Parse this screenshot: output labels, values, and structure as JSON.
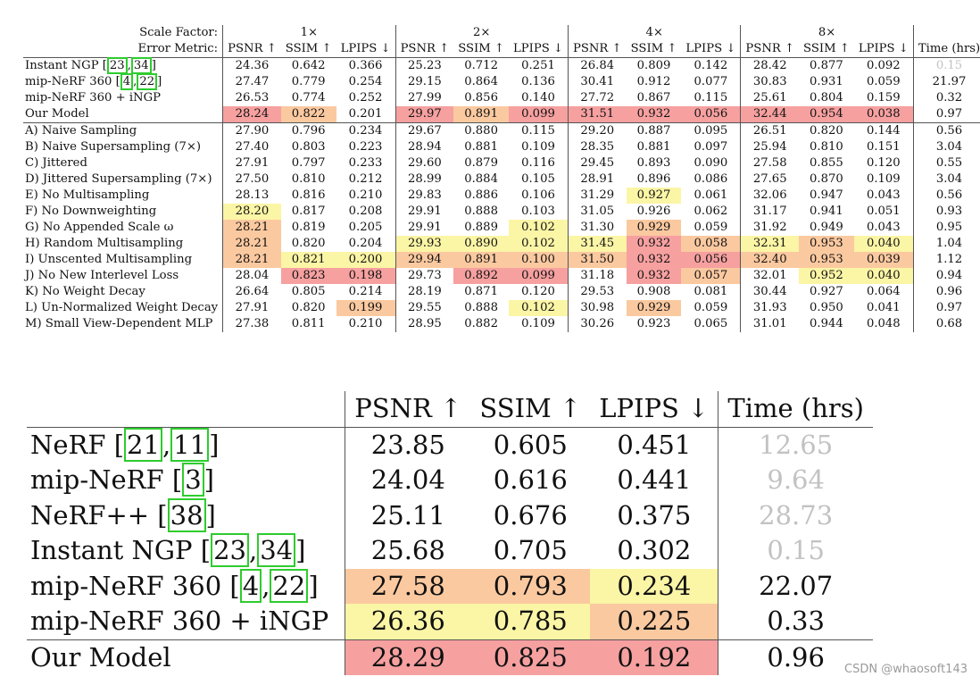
{
  "table1": {
    "header_row1": [
      "Scale Factor:",
      "1×",
      "2×",
      "4×",
      "8×"
    ],
    "header_row2": [
      "Error Metric:",
      "PSNR ↑",
      "SSIM ↑",
      "LPIPS ↓",
      "PSNR ↑",
      "SSIM ↑",
      "LPIPS ↓",
      "PSNR ↑",
      "SSIM ↑",
      "LPIPS ↓",
      "PSNR ↑",
      "SSIM ↑",
      "LPIPS ↓",
      "Time (hrs)"
    ],
    "rows": [
      {
        "label": "Instant NGP",
        "refs": [
          "23",
          "34"
        ],
        "values": [
          "24.36",
          "0.642",
          "0.366",
          "25.23",
          "0.712",
          "0.251",
          "26.84",
          "0.809",
          "0.142",
          "28.42",
          "0.877",
          "0.092",
          "0.15"
        ],
        "colors": [
          "",
          "",
          "",
          "",
          "",
          "",
          "",
          "",
          "",
          "",
          "",
          "",
          ""
        ],
        "grey_time": true
      },
      {
        "label": "mip-NeRF 360",
        "refs": [
          "4",
          "22"
        ],
        "values": [
          "27.47",
          "0.779",
          "0.254",
          "29.15",
          "0.864",
          "0.136",
          "30.41",
          "0.912",
          "0.077",
          "30.83",
          "0.931",
          "0.059",
          "21.97"
        ],
        "colors": [
          "",
          "",
          "",
          "",
          "",
          "",
          "",
          "",
          "",
          "",
          "",
          "",
          ""
        ]
      },
      {
        "label": "mip-NeRF 360 + iNGP",
        "refs": [],
        "values": [
          "26.53",
          "0.774",
          "0.252",
          "27.99",
          "0.856",
          "0.140",
          "27.72",
          "0.867",
          "0.115",
          "25.61",
          "0.804",
          "0.159",
          "0.32"
        ],
        "colors": [
          "",
          "",
          "",
          "",
          "",
          "",
          "",
          "",
          "",
          "",
          "",
          "",
          ""
        ]
      },
      {
        "label": "Our Model",
        "refs": [],
        "values": [
          "28.24",
          "0.822",
          "0.201",
          "29.97",
          "0.891",
          "0.099",
          "31.51",
          "0.932",
          "0.056",
          "32.44",
          "0.954",
          "0.038",
          "0.97"
        ],
        "colors": [
          "c1",
          "c2",
          "",
          "c1",
          "c2",
          "c1",
          "c1",
          "c1",
          "c1",
          "c1",
          "c1",
          "c1",
          ""
        ]
      },
      {
        "label": "A) Naive Sampling",
        "refs": [],
        "values": [
          "27.90",
          "0.796",
          "0.234",
          "29.67",
          "0.880",
          "0.115",
          "29.20",
          "0.887",
          "0.095",
          "26.51",
          "0.820",
          "0.144",
          "0.56"
        ],
        "colors": [
          "",
          "",
          "",
          "",
          "",
          "",
          "",
          "",
          "",
          "",
          "",
          "",
          ""
        ]
      },
      {
        "label": "B) Naive Supersampling (7×)",
        "refs": [],
        "values": [
          "27.40",
          "0.803",
          "0.223",
          "28.94",
          "0.881",
          "0.109",
          "28.35",
          "0.881",
          "0.097",
          "25.94",
          "0.810",
          "0.151",
          "3.04"
        ],
        "colors": [
          "",
          "",
          "",
          "",
          "",
          "",
          "",
          "",
          "",
          "",
          "",
          "",
          ""
        ]
      },
      {
        "label": "C) Jittered",
        "refs": [],
        "values": [
          "27.91",
          "0.797",
          "0.233",
          "29.60",
          "0.879",
          "0.116",
          "29.45",
          "0.893",
          "0.090",
          "27.58",
          "0.855",
          "0.120",
          "0.55"
        ],
        "colors": [
          "",
          "",
          "",
          "",
          "",
          "",
          "",
          "",
          "",
          "",
          "",
          "",
          ""
        ]
      },
      {
        "label": "D) Jittered Supersampling (7×)",
        "refs": [],
        "values": [
          "27.50",
          "0.810",
          "0.212",
          "28.99",
          "0.884",
          "0.105",
          "28.91",
          "0.896",
          "0.086",
          "27.65",
          "0.870",
          "0.109",
          "3.04"
        ],
        "colors": [
          "",
          "",
          "",
          "",
          "",
          "",
          "",
          "",
          "",
          "",
          "",
          "",
          ""
        ]
      },
      {
        "label": "E) No Multisampling",
        "refs": [],
        "values": [
          "28.13",
          "0.816",
          "0.210",
          "29.83",
          "0.886",
          "0.106",
          "31.29",
          "0.927",
          "0.061",
          "32.06",
          "0.947",
          "0.043",
          "0.56"
        ],
        "colors": [
          "",
          "",
          "",
          "",
          "",
          "",
          "",
          "c3",
          "",
          "",
          "",
          "",
          ""
        ]
      },
      {
        "label": "F) No Downweighting",
        "refs": [],
        "values": [
          "28.20",
          "0.817",
          "0.208",
          "29.91",
          "0.888",
          "0.103",
          "31.05",
          "0.926",
          "0.062",
          "31.17",
          "0.941",
          "0.051",
          "0.93"
        ],
        "colors": [
          "c3",
          "",
          "",
          "",
          "",
          "",
          "",
          "",
          "",
          "",
          "",
          "",
          ""
        ]
      },
      {
        "label": "G) No Appended Scale ω",
        "refs": [],
        "values": [
          "28.21",
          "0.819",
          "0.205",
          "29.91",
          "0.889",
          "0.102",
          "31.30",
          "0.929",
          "0.059",
          "31.92",
          "0.949",
          "0.043",
          "0.95"
        ],
        "colors": [
          "c2",
          "",
          "",
          "",
          "",
          "c3",
          "",
          "c2",
          "",
          "",
          "",
          "",
          ""
        ]
      },
      {
        "label": "H) Random Multisampling",
        "refs": [],
        "values": [
          "28.21",
          "0.820",
          "0.204",
          "29.93",
          "0.890",
          "0.102",
          "31.45",
          "0.932",
          "0.058",
          "32.31",
          "0.953",
          "0.040",
          "1.04"
        ],
        "colors": [
          "c2",
          "",
          "",
          "c3",
          "c3",
          "c3",
          "c3",
          "c1",
          "c2",
          "c3",
          "c2",
          "c3",
          ""
        ]
      },
      {
        "label": "I) Unscented Multisampling",
        "refs": [],
        "values": [
          "28.21",
          "0.821",
          "0.200",
          "29.94",
          "0.891",
          "0.100",
          "31.50",
          "0.932",
          "0.056",
          "32.40",
          "0.953",
          "0.039",
          "1.12"
        ],
        "colors": [
          "c2",
          "c3",
          "c3",
          "c2",
          "c2",
          "c2",
          "c2",
          "c1",
          "c1",
          "c2",
          "c2",
          "c2",
          ""
        ]
      },
      {
        "label": "J) No New Interlevel Loss",
        "refs": [],
        "values": [
          "28.04",
          "0.823",
          "0.198",
          "29.73",
          "0.892",
          "0.099",
          "31.18",
          "0.932",
          "0.057",
          "32.01",
          "0.952",
          "0.040",
          "0.94"
        ],
        "colors": [
          "",
          "c1",
          "c1",
          "",
          "c1",
          "c1",
          "",
          "c1",
          "c2",
          "",
          "c3",
          "c3",
          ""
        ]
      },
      {
        "label": "K) No Weight Decay",
        "refs": [],
        "values": [
          "26.64",
          "0.805",
          "0.214",
          "28.19",
          "0.871",
          "0.120",
          "29.53",
          "0.908",
          "0.081",
          "30.44",
          "0.927",
          "0.064",
          "0.96"
        ],
        "colors": [
          "",
          "",
          "",
          "",
          "",
          "",
          "",
          "",
          "",
          "",
          "",
          "",
          ""
        ]
      },
      {
        "label": "L) Un-Normalized Weight Decay",
        "refs": [],
        "values": [
          "27.91",
          "0.820",
          "0.199",
          "29.55",
          "0.888",
          "0.102",
          "30.98",
          "0.929",
          "0.059",
          "31.93",
          "0.950",
          "0.041",
          "0.97"
        ],
        "colors": [
          "",
          "",
          "c2",
          "",
          "",
          "c3",
          "",
          "c2",
          "",
          "",
          "",
          "",
          ""
        ]
      },
      {
        "label": "M) Small View-Dependent MLP",
        "refs": [],
        "values": [
          "27.38",
          "0.811",
          "0.210",
          "28.95",
          "0.882",
          "0.109",
          "30.26",
          "0.923",
          "0.065",
          "31.01",
          "0.944",
          "0.048",
          "0.68"
        ],
        "colors": [
          "",
          "",
          "",
          "",
          "",
          "",
          "",
          "",
          "",
          "",
          "",
          "",
          ""
        ]
      }
    ]
  },
  "table2": {
    "header": [
      "PSNR ↑",
      "SSIM ↑",
      "LPIPS ↓",
      "Time (hrs)"
    ],
    "rows": [
      {
        "label": "NeRF",
        "refs": [
          "21",
          "11"
        ],
        "values": [
          "23.85",
          "0.605",
          "0.451",
          "12.65"
        ],
        "colors": [
          "",
          "",
          "",
          ""
        ],
        "grey_time": true
      },
      {
        "label": "mip-NeRF",
        "refs": [
          "3"
        ],
        "values": [
          "24.04",
          "0.616",
          "0.441",
          "9.64"
        ],
        "colors": [
          "",
          "",
          "",
          ""
        ],
        "grey_time": true
      },
      {
        "label": "NeRF++",
        "refs": [
          "38"
        ],
        "values": [
          "25.11",
          "0.676",
          "0.375",
          "28.73"
        ],
        "colors": [
          "",
          "",
          "",
          ""
        ],
        "grey_time": true
      },
      {
        "label": "Instant NGP",
        "refs": [
          "23",
          "34"
        ],
        "values": [
          "25.68",
          "0.705",
          "0.302",
          "0.15"
        ],
        "colors": [
          "",
          "",
          "",
          ""
        ],
        "grey_time": true
      },
      {
        "label": "mip-NeRF 360",
        "refs": [
          "4",
          "22"
        ],
        "values": [
          "27.58",
          "0.793",
          "0.234",
          "22.07"
        ],
        "colors": [
          "c2",
          "c2",
          "c3",
          ""
        ]
      },
      {
        "label": "mip-NeRF 360 + iNGP",
        "refs": [],
        "values": [
          "26.36",
          "0.785",
          "0.225",
          "0.33"
        ],
        "colors": [
          "c3",
          "c3",
          "c2",
          ""
        ]
      },
      {
        "label": "Our Model",
        "refs": [],
        "values": [
          "28.29",
          "0.825",
          "0.192",
          "0.96"
        ],
        "colors": [
          "c1",
          "c1",
          "c1",
          ""
        ]
      }
    ]
  },
  "watermark": "CSDN @whaosoft143"
}
